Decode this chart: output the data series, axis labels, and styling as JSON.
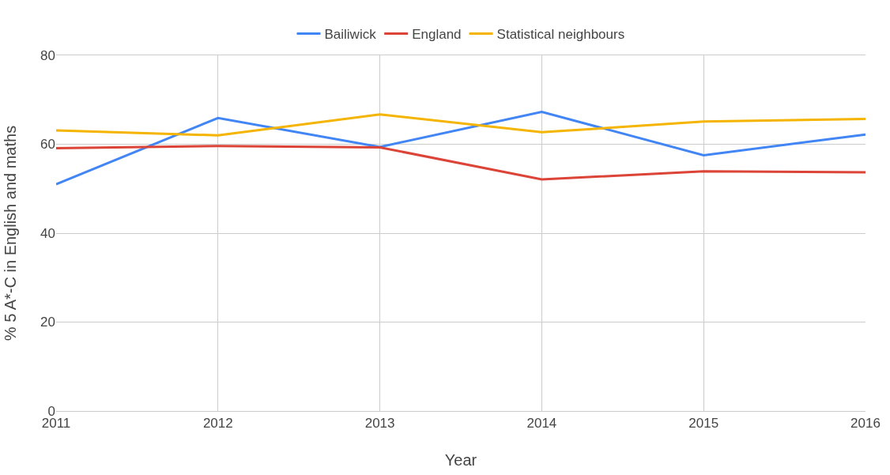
{
  "chart_data": {
    "type": "line",
    "xlabel": "Year",
    "ylabel": "% 5 A*-C in English and maths",
    "x": [
      2011,
      2012,
      2013,
      2014,
      2015,
      2016
    ],
    "series": [
      {
        "name": "Bailiwick",
        "color": "#4285f4",
        "values": [
          51.0,
          65.9,
          59.4,
          67.3,
          57.5,
          62.2
        ]
      },
      {
        "name": "England",
        "color": "#db4437",
        "values": [
          59.1,
          59.6,
          59.3,
          52.1,
          53.9,
          53.7
        ]
      },
      {
        "name": "Statistical neighbours",
        "color": "#f4b400",
        "values": [
          63.1,
          62.0,
          66.7,
          62.7,
          65.1,
          65.7
        ]
      }
    ],
    "xlim": [
      2011,
      2016
    ],
    "xticks": [
      2011,
      2012,
      2013,
      2014,
      2015,
      2016
    ],
    "ylim": [
      0,
      80
    ],
    "yticks": [
      0,
      20,
      40,
      60,
      80
    ],
    "grid": true,
    "legend": "top",
    "marker": "none",
    "line_style": "solid"
  }
}
